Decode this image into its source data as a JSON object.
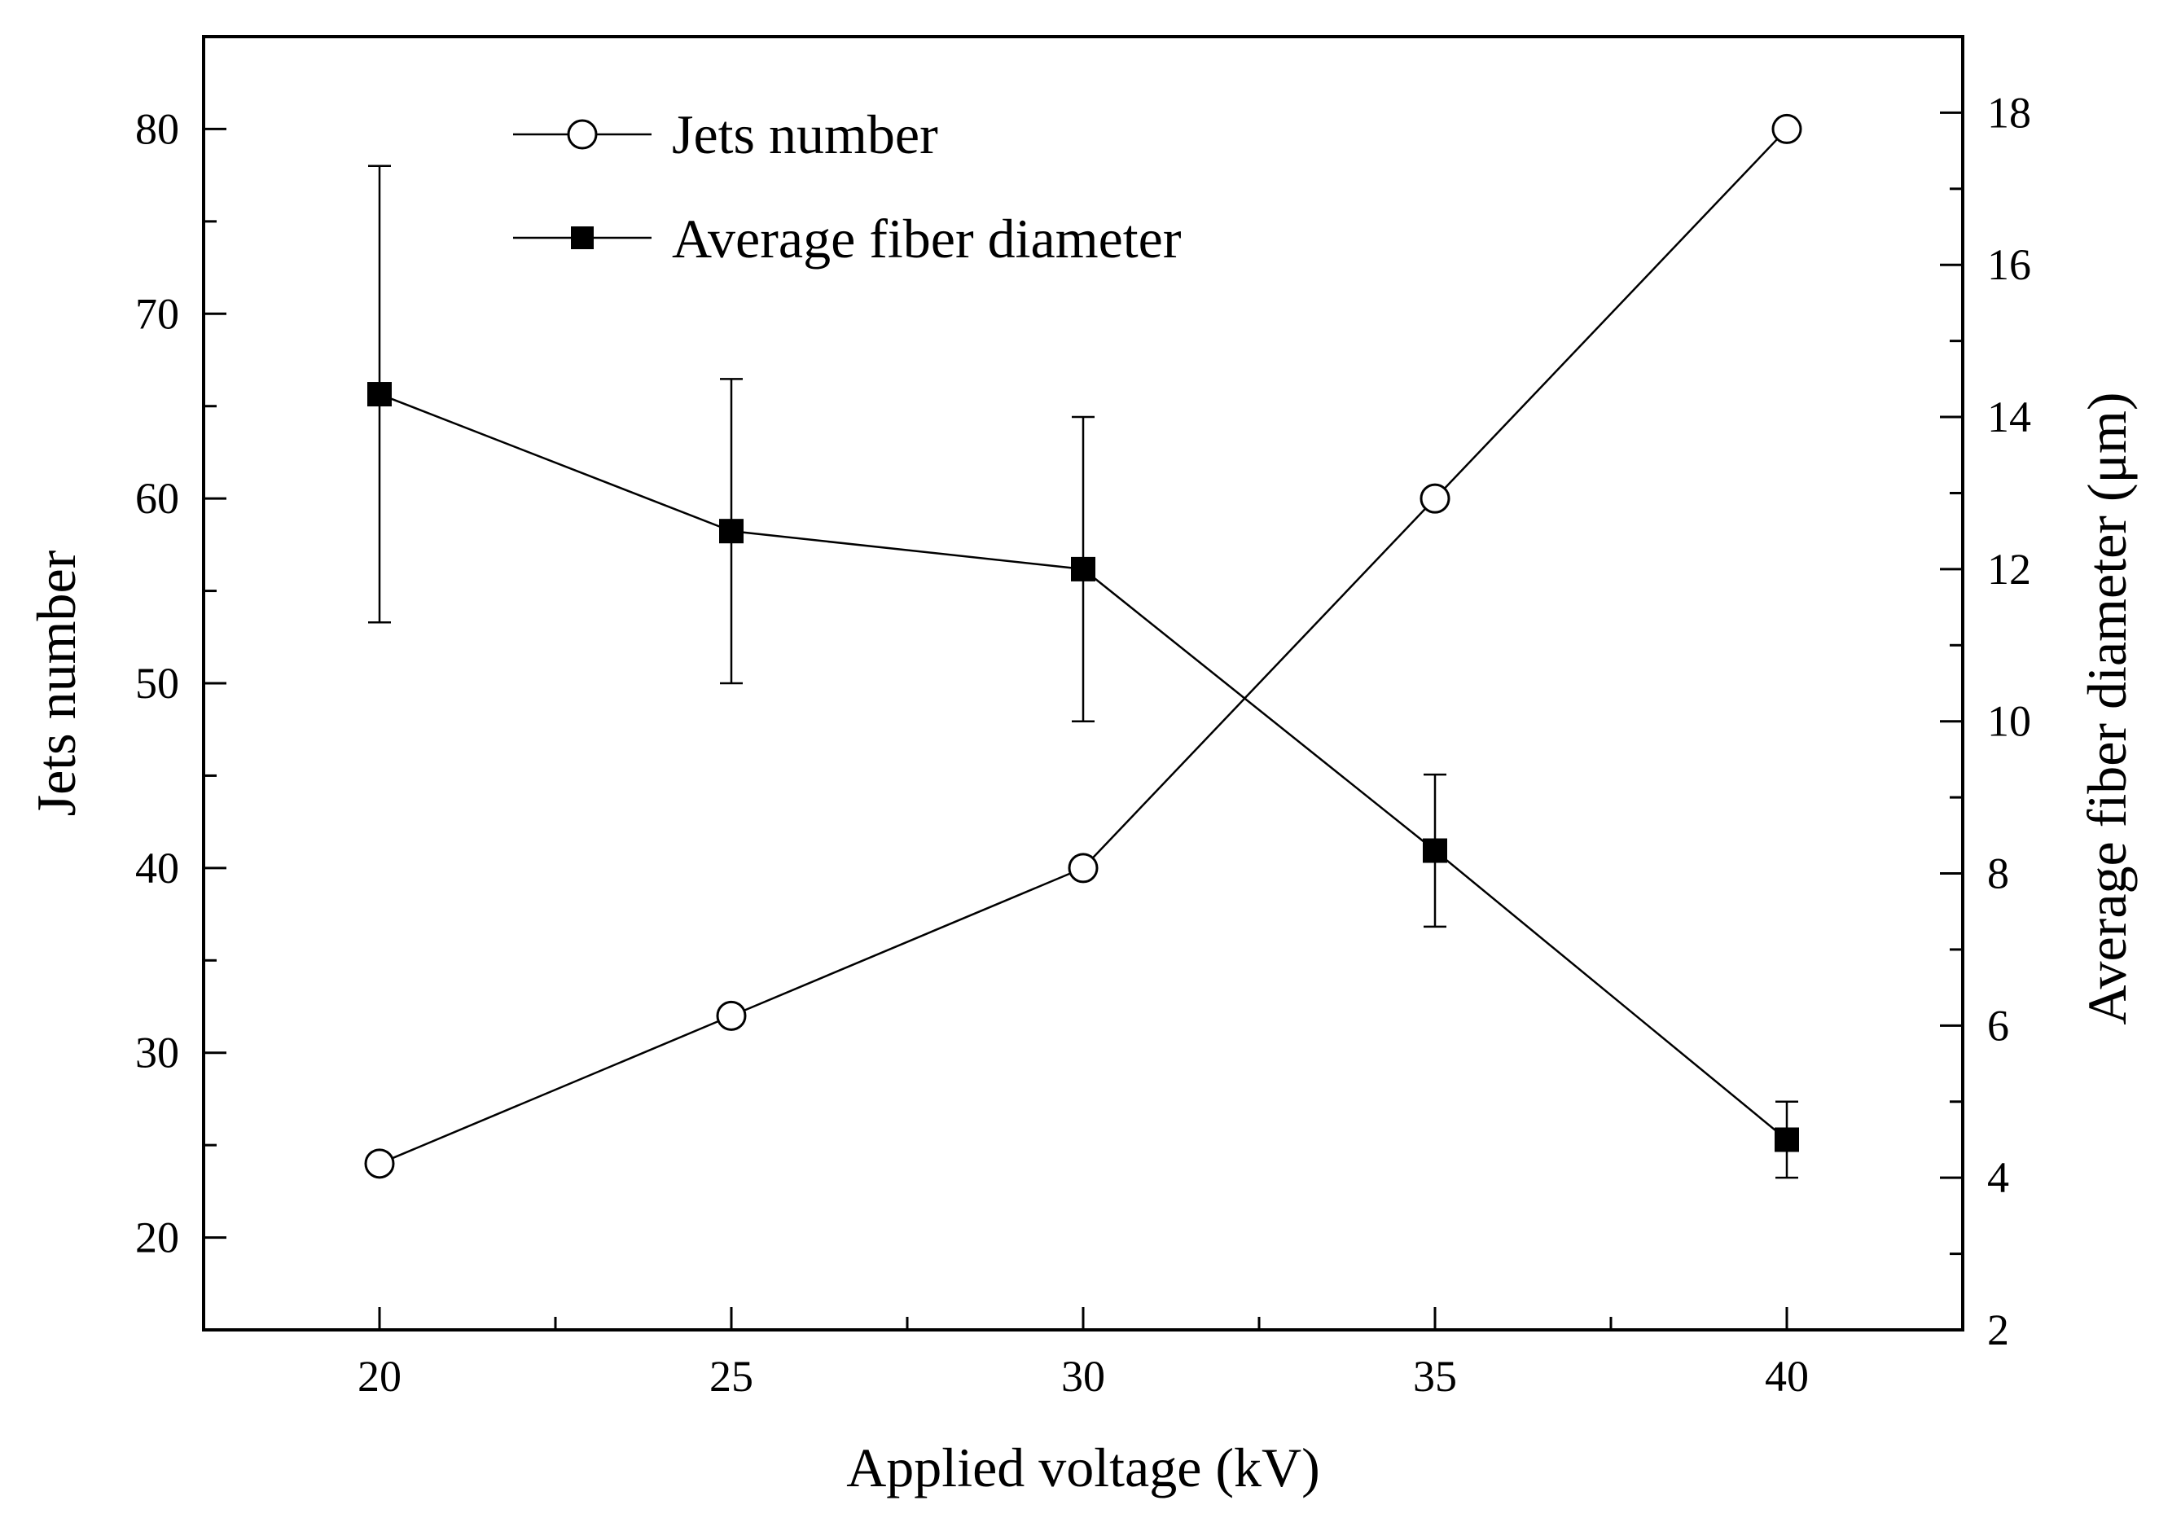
{
  "chart_data": {
    "type": "line",
    "title": "",
    "xlabel": "Applied voltage (kV)",
    "ylabel": "Jets number",
    "y2label": "Average fiber diameter (μm)",
    "xlim": [
      17.5,
      42.5
    ],
    "ylim": [
      15,
      85
    ],
    "y2lim": [
      2,
      19
    ],
    "x_ticks": [
      20,
      25,
      30,
      35,
      40
    ],
    "x_minor_ticks": [
      22.5,
      27.5,
      32.5,
      37.5
    ],
    "y_ticks": [
      20,
      30,
      40,
      50,
      60,
      70,
      80
    ],
    "y_minor_ticks": [
      25,
      35,
      45,
      55,
      65,
      75
    ],
    "y2_ticks": [
      2,
      4,
      6,
      8,
      10,
      12,
      14,
      16,
      18
    ],
    "y2_minor_ticks": [
      3,
      5,
      7,
      9,
      11,
      13,
      15,
      17
    ],
    "legend_position": "top-left",
    "series": [
      {
        "name": "Jets number",
        "axis": "left",
        "marker": "open-circle",
        "x": [
          20,
          25,
          30,
          35,
          40
        ],
        "values": [
          24,
          32,
          40,
          60,
          80
        ]
      },
      {
        "name": "Average fiber diameter",
        "axis": "right",
        "marker": "filled-square",
        "x": [
          20,
          25,
          30,
          35,
          40
        ],
        "values": [
          14.3,
          12.5,
          12.0,
          8.3,
          4.5
        ],
        "error_low": [
          11.3,
          10.5,
          10.0,
          7.3,
          4.0
        ],
        "error_high": [
          17.3,
          14.5,
          14.0,
          9.3,
          5.0
        ]
      }
    ],
    "colors": {
      "line": "#000000",
      "background": "#ffffff"
    }
  }
}
